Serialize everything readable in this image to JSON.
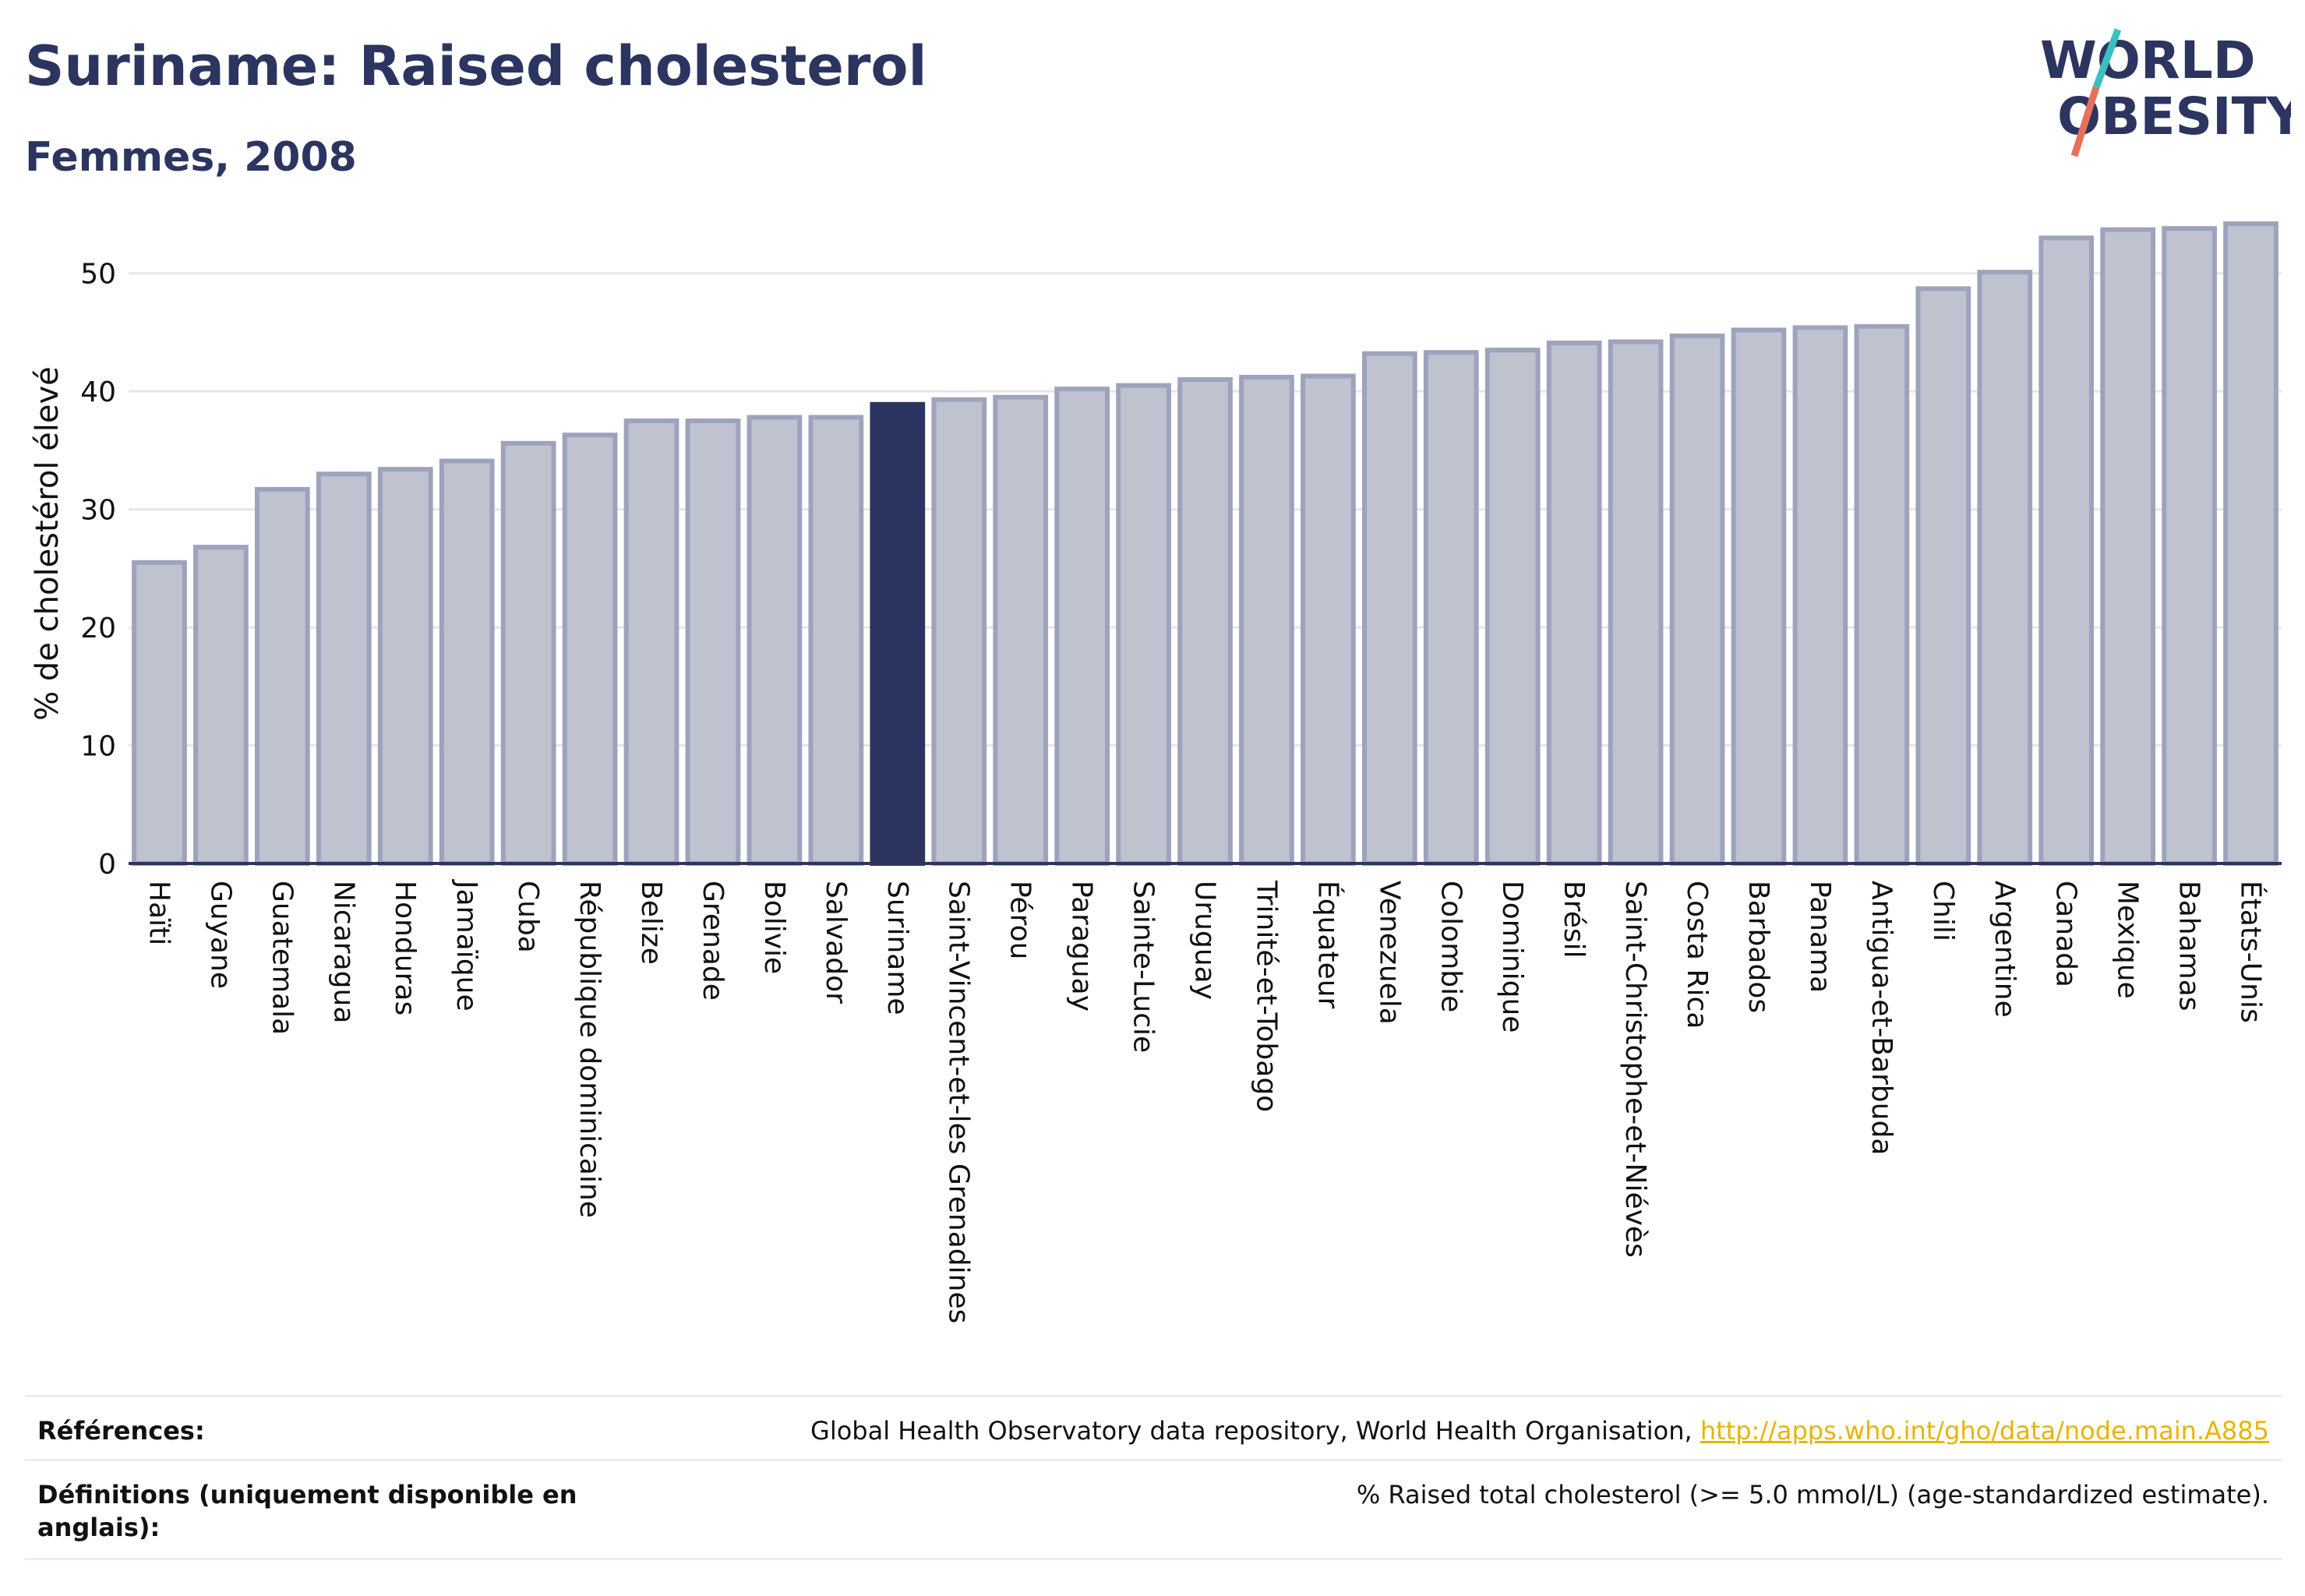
{
  "header": {
    "title": "Suriname: Raised cholesterol",
    "subtitle": "Femmes, 2008",
    "logo_line1": "WORLD",
    "logo_line2": "OBESITY"
  },
  "colors": {
    "bar": "#bfc2cf",
    "bar_border": "#9ea3bd",
    "highlight": "#2b3560",
    "axis": "#2b3560",
    "grid": "#e6e6e6",
    "logo_teal": "#3bbfbf",
    "logo_coral": "#e8705a"
  },
  "chart_data": {
    "type": "bar",
    "ylabel": "% de cholestérol élevé",
    "ylim": [
      0,
      55
    ],
    "yticks": [
      0,
      10,
      20,
      30,
      40,
      50
    ],
    "highlight": "Suriname",
    "categories": [
      "Haïti",
      "Guyane",
      "Guatemala",
      "Nicaragua",
      "Honduras",
      "Jamaïque",
      "Cuba",
      "République dominicaine",
      "Belize",
      "Grenade",
      "Bolivie",
      "Salvador",
      "Suriname",
      "Saint-Vincent-et-les Grenadines",
      "Pérou",
      "Paraguay",
      "Sainte-Lucie",
      "Uruguay",
      "Trinité-et-Tobago",
      "Équateur",
      "Venezuela",
      "Colombie",
      "Dominique",
      "Brésil",
      "Saint-Christophe-et-Niévès",
      "Costa Rica",
      "Barbados",
      "Panama",
      "Antigua-et-Barbuda",
      "Chili",
      "Argentine",
      "Canada",
      "Mexique",
      "Bahamas",
      "États-Unis"
    ],
    "values": [
      25.5,
      26.8,
      31.7,
      33.0,
      33.4,
      34.1,
      35.6,
      36.3,
      37.5,
      37.5,
      37.8,
      37.8,
      38.9,
      39.3,
      39.5,
      40.2,
      40.5,
      41.0,
      41.2,
      41.3,
      43.2,
      43.3,
      43.5,
      44.1,
      44.2,
      44.7,
      45.2,
      45.4,
      45.5,
      48.7,
      50.1,
      53.0,
      53.7,
      53.8,
      54.2
    ]
  },
  "footer": {
    "references_label": "Références:",
    "references_text": "Global Health Observatory data repository, World Health Organisation, ",
    "references_link": "http://apps.who.int/gho/data/node.main.A885",
    "definitions_label": "Définitions (uniquement disponible en anglais):",
    "definitions_text": "% Raised total cholesterol (>= 5.0 mmol/L) (age-standardized estimate)."
  }
}
